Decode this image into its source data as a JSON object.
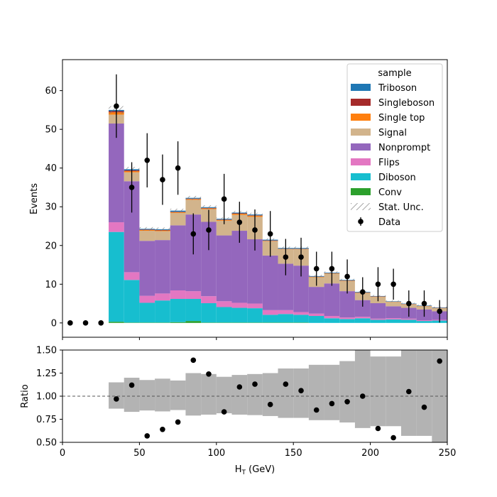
{
  "chart_data": [
    {
      "type": "stacked-histogram",
      "ylabel": "Events",
      "ylim": [
        -3.7,
        68
      ],
      "xlim": [
        0,
        250
      ],
      "yticks": [
        "0",
        "10",
        "20",
        "30",
        "40",
        "50",
        "60"
      ],
      "bin_centers": [
        5,
        15,
        25,
        35,
        45,
        55,
        65,
        75,
        85,
        95,
        105,
        115,
        125,
        135,
        145,
        155,
        165,
        175,
        185,
        195,
        205,
        215,
        225,
        235,
        245
      ],
      "stack_order_bottom_to_top": [
        "Conv",
        "Diboson",
        "Flips",
        "Nonprompt",
        "Signal",
        "Single top",
        "Singleboson",
        "Triboson"
      ],
      "series": [
        {
          "name": "Conv",
          "color": "#2ca02c",
          "values": [
            0,
            0,
            0,
            0.3,
            0.1,
            0.1,
            0.1,
            0.2,
            0.5,
            0.1,
            0.1,
            0.1,
            0.1,
            0.1,
            0.1,
            0.1,
            0,
            0,
            0,
            0,
            0,
            0,
            0,
            0,
            0
          ]
        },
        {
          "name": "Diboson",
          "color": "#17becf",
          "values": [
            0,
            0,
            0,
            23.2,
            11.0,
            5.1,
            5.7,
            6.0,
            5.7,
            5.0,
            4.0,
            3.8,
            3.7,
            2.0,
            2.2,
            2.0,
            1.8,
            1.2,
            1.0,
            1.2,
            0.8,
            0.9,
            0.8,
            0.5,
            0.6
          ]
        },
        {
          "name": "Flips",
          "color": "#e377c2",
          "values": [
            0,
            0,
            0,
            2.5,
            2.0,
            1.8,
            1.8,
            2.2,
            2.0,
            1.8,
            1.5,
            1.3,
            1.2,
            1.2,
            1.0,
            0.7,
            0.6,
            0.6,
            0.4,
            0.4,
            0.3,
            0.3,
            0.3,
            0.2,
            0.2
          ]
        },
        {
          "name": "Nonprompt",
          "color": "#9467bd",
          "values": [
            0,
            0,
            0,
            25.5,
            23.5,
            14.2,
            13.8,
            16.8,
            19.8,
            19.2,
            17.0,
            18.6,
            16.6,
            14.1,
            12.0,
            12.0,
            6.9,
            8.4,
            6.8,
            4.3,
            4.0,
            3.1,
            2.8,
            2.8,
            2.2
          ]
        },
        {
          "name": "Signal",
          "color": "#d2b48c",
          "values": [
            0,
            0,
            0,
            2.3,
            2.3,
            2.6,
            2.3,
            3.2,
            3.8,
            3.3,
            3.8,
            4.1,
            5.8,
            3.7,
            3.7,
            4.2,
            2.5,
            2.5,
            2.6,
            1.8,
            1.6,
            1.1,
            0.9,
            0.8,
            0.8
          ]
        },
        {
          "name": "Single top",
          "color": "#ff7f0e",
          "values": [
            0,
            0,
            0,
            0.6,
            0.3,
            0.2,
            0.2,
            0.2,
            0.2,
            0.2,
            0.2,
            0.3,
            0.3,
            0.1,
            0.1,
            0.1,
            0.1,
            0.1,
            0.1,
            0.1,
            0.1,
            0.05,
            0.05,
            0.05,
            0.05
          ]
        },
        {
          "name": "Singleboson",
          "color": "#a52a2a",
          "values": [
            0,
            0,
            0,
            0.3,
            0.2,
            0.1,
            0.1,
            0.1,
            0.1,
            0.1,
            0.1,
            0.1,
            0.1,
            0.1,
            0.05,
            0.05,
            0.05,
            0.05,
            0.05,
            0.05,
            0.05,
            0.05,
            0.05,
            0.05,
            0.05
          ]
        },
        {
          "name": "Triboson",
          "color": "#1f77b4",
          "values": [
            0,
            0,
            0,
            0.3,
            0.3,
            0.2,
            0.2,
            0.3,
            0.2,
            0.2,
            0.2,
            0.2,
            0.2,
            0.2,
            0.2,
            0.2,
            0.15,
            0.15,
            0.15,
            0.15,
            0.1,
            0.1,
            0.1,
            0.1,
            0.1
          ]
        }
      ],
      "stat_unc": {
        "name": "Stat. Unc.",
        "values": [
          0,
          0,
          0,
          1.0,
          0.6,
          0.45,
          0.45,
          0.5,
          0.5,
          0.5,
          0.4,
          0.45,
          0.45,
          0.35,
          0.35,
          0.35,
          0.3,
          0.3,
          0.3,
          0.25,
          0.25,
          0.2,
          0.2,
          0.2,
          0.2
        ]
      },
      "data": {
        "name": "Data",
        "values": [
          0,
          0,
          0,
          56,
          35,
          42,
          37,
          40,
          23,
          24,
          32,
          26,
          24,
          23,
          17,
          17,
          14,
          14,
          12,
          8,
          10,
          10,
          5,
          5,
          3
        ],
        "err": [
          0,
          0,
          0,
          8.2,
          6.5,
          7.0,
          6.5,
          6.9,
          5.3,
          5.2,
          6.5,
          5.3,
          5.3,
          5.9,
          4.7,
          5.0,
          4.4,
          4.4,
          4.4,
          3.8,
          4.4,
          4.0,
          3.4,
          3.4,
          2.9
        ]
      },
      "legend": {
        "title": "sample",
        "position": "upper right",
        "entries": [
          "Triboson",
          "Singleboson",
          "Single top",
          "Signal",
          "Nonprompt",
          "Flips",
          "Diboson",
          "Conv",
          "Stat. Unc.",
          "Data"
        ]
      }
    },
    {
      "type": "ratio",
      "xlabel": "H",
      "xlabel_subscript": "T",
      "xlabel_unit": " (GeV)",
      "ylabel": "Ratio",
      "ylim": [
        0.5,
        1.5
      ],
      "xlim": [
        0,
        250
      ],
      "xticks": [
        "0",
        "50",
        "100",
        "150",
        "200",
        "250"
      ],
      "yticks": [
        "0.50",
        "0.75",
        "1.00",
        "1.25",
        "1.50"
      ],
      "reference_line": 1.0,
      "band": [
        {
          "x0": 30,
          "x1": 40,
          "lo": 0.865,
          "hi": 1.15
        },
        {
          "x0": 40,
          "x1": 50,
          "lo": 0.83,
          "hi": 1.2
        },
        {
          "x0": 50,
          "x1": 60,
          "lo": 0.845,
          "hi": 1.175
        },
        {
          "x0": 60,
          "x1": 70,
          "lo": 0.835,
          "hi": 1.19
        },
        {
          "x0": 70,
          "x1": 80,
          "lo": 0.85,
          "hi": 1.17
        },
        {
          "x0": 80,
          "x1": 90,
          "lo": 0.79,
          "hi": 1.25
        },
        {
          "x0": 90,
          "x1": 100,
          "lo": 0.8,
          "hi": 1.24
        },
        {
          "x0": 100,
          "x1": 110,
          "lo": 0.815,
          "hi": 1.21
        },
        {
          "x0": 110,
          "x1": 120,
          "lo": 0.8,
          "hi": 1.23
        },
        {
          "x0": 120,
          "x1": 130,
          "lo": 0.795,
          "hi": 1.24
        },
        {
          "x0": 130,
          "x1": 140,
          "lo": 0.785,
          "hi": 1.25
        },
        {
          "x0": 140,
          "x1": 150,
          "lo": 0.765,
          "hi": 1.3
        },
        {
          "x0": 150,
          "x1": 160,
          "lo": 0.765,
          "hi": 1.3
        },
        {
          "x0": 160,
          "x1": 170,
          "lo": 0.74,
          "hi": 1.34
        },
        {
          "x0": 170,
          "x1": 180,
          "lo": 0.74,
          "hi": 1.34
        },
        {
          "x0": 180,
          "x1": 190,
          "lo": 0.715,
          "hi": 1.38
        },
        {
          "x0": 190,
          "x1": 200,
          "lo": 0.655,
          "hi": 1.5
        },
        {
          "x0": 200,
          "x1": 210,
          "lo": 0.675,
          "hi": 1.43
        },
        {
          "x0": 210,
          "x1": 220,
          "lo": 0.675,
          "hi": 1.43
        },
        {
          "x0": 220,
          "x1": 230,
          "lo": 0.57,
          "hi": 1.5
        },
        {
          "x0": 230,
          "x1": 240,
          "lo": 0.57,
          "hi": 1.5
        },
        {
          "x0": 240,
          "x1": 250,
          "lo": 0.5,
          "hi": 1.5
        }
      ],
      "points": {
        "x": [
          35,
          45,
          55,
          65,
          75,
          85,
          95,
          105,
          115,
          125,
          135,
          145,
          155,
          165,
          175,
          185,
          195,
          205,
          215,
          225,
          235,
          245
        ],
        "y": [
          0.97,
          1.12,
          0.57,
          0.64,
          0.72,
          1.39,
          1.24,
          0.83,
          1.1,
          1.13,
          0.91,
          1.13,
          1.06,
          0.85,
          0.92,
          0.94,
          1.0,
          0.65,
          0.55,
          1.05,
          0.88,
          1.38
        ]
      }
    }
  ]
}
